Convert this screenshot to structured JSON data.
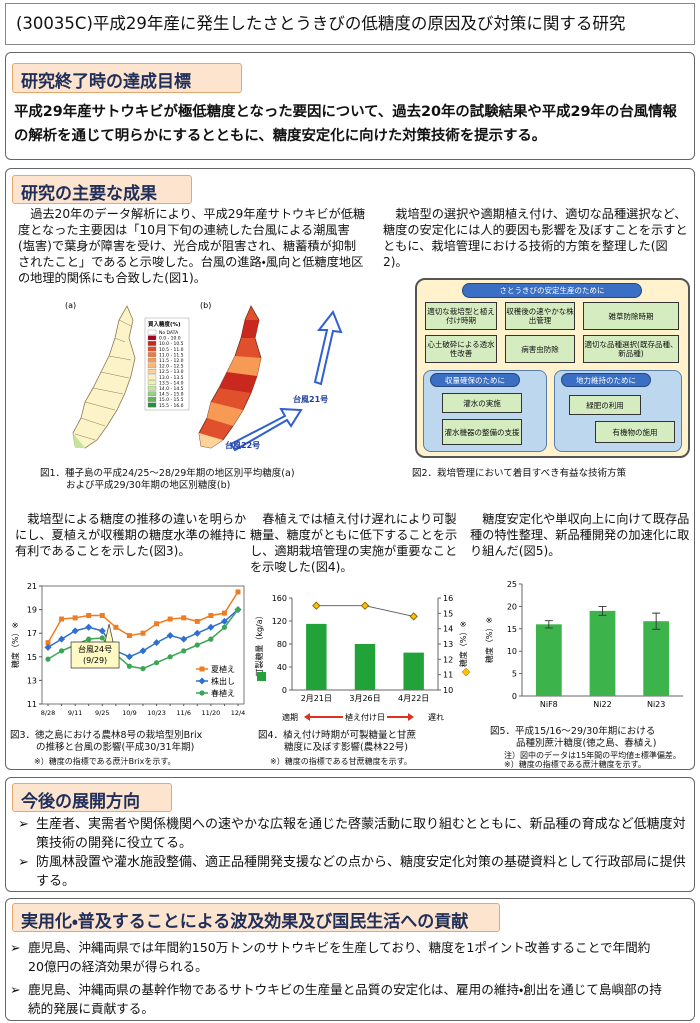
{
  "title": "(30035C)平成29年産に発生したさとうきびの低糖度の原因及び対策に関する研究",
  "goal": {
    "heading": "研究終了時の達成目標",
    "text": "平成29年産サトウキビが極低糖度となった要因について、過去20年の試験結果や平成29年の台風情報の解析を通じて明らかにするとともに、糖度安定化に向けた対策技術を提示する。"
  },
  "results": {
    "heading": "研究の主要な成果",
    "para1": "過去20年のデータ解析により、平成29年産サトウキビが低糖度となった主要因は「10月下旬の連続した台風による潮風害(塩害)で葉身が障害を受け、光合成が阻害され、糖蓄積が抑制されたこと」であると示唆した。台風の進路・風向と低糖度地区の地理的関係にも合致した(図1)。",
    "para2": "栽培型の選択や適期植え付け、適切な品種選択など、糖度の安定化には人的要因も影響を及ぼすことを示すとともに、栽培管理における技術的方策を整理した(図2)。",
    "para3": "栽培型による糖度の推移の違いを明らかにし、夏植えが収穫期の糖度水準の維持に有利であることを示した(図3)。",
    "para4": "春植えでは植え付け遅れにより可製糖量、糖度がともに低下することを示し、適期栽培管理の実施が重要なことを示唆した(図4)。",
    "para5": "糖度安定化や単収向上に向けて既存品種の特性整理、新品種開発の加速化に取り組んだ(図5)。",
    "fig1": {
      "label_a": "(a)",
      "label_b": "(b)",
      "legend_title": "買入糖度(%)",
      "legend": [
        {
          "label": "No DATA",
          "color": "#ffffff"
        },
        {
          "label": "0.0 - 10.0",
          "color": "#a50026"
        },
        {
          "label": "10.0 - 10.5",
          "color": "#c8281e"
        },
        {
          "label": "10.5 - 11.0",
          "color": "#e0502c"
        },
        {
          "label": "11.0 - 11.5",
          "color": "#ef7a3e"
        },
        {
          "label": "11.5 - 12.0",
          "color": "#f79a55"
        },
        {
          "label": "12.0 - 12.5",
          "color": "#fbb872"
        },
        {
          "label": "12.5 - 13.0",
          "color": "#fdd39a"
        },
        {
          "label": "13.0 - 13.5",
          "color": "#fef0c0"
        },
        {
          "label": "13.5 - 14.0",
          "color": "#e8f3b4"
        },
        {
          "label": "14.0 - 14.5",
          "color": "#c5e39a"
        },
        {
          "label": "14.5 - 15.0",
          "color": "#98cf7d"
        },
        {
          "label": "15.0 - 15.5",
          "color": "#62b25e"
        },
        {
          "label": "15.5 - 16.0",
          "color": "#2e8b3e"
        }
      ],
      "typhoon21": "台風21号",
      "typhoon22": "台風22号",
      "caption": [
        "図1．種子島の平成24/25～28/29年期の地区別平均糖度(a)",
        "および平成29/30年期の地区別糖度(b)"
      ]
    },
    "fig2": {
      "top": "さとうきびの安定生産のために",
      "top_boxes": [
        "適切な栽培型と植え付け時期",
        "収穫後の速やかな株出管理",
        "雑草防除時期",
        "心土破砕による透水性改善",
        "病害虫防除",
        "適切な品種選択(既存品種、新品種)"
      ],
      "left": "収量確保のために",
      "left_boxes": [
        "灌水の実施",
        "灌水機器の整備の支援"
      ],
      "right": "地力維持のために",
      "right_boxes": [
        "緑肥の利用",
        "有機物の施用"
      ],
      "caption": "図2．栽培管理において着目すべき有益な技術方策"
    },
    "fig3": {
      "chart_data": {
        "type": "line",
        "categories": [
          "8/28",
          null,
          "9/11",
          null,
          "9/25",
          null,
          "10/9",
          null,
          "10/23",
          null,
          "11/6",
          null,
          "11/20",
          null,
          "12/4"
        ],
        "series": [
          {
            "name": "夏植え",
            "color": "#f07c22",
            "marker": "square",
            "values": [
              16.2,
              18.2,
              18.3,
              18.5,
              18.5,
              17.5,
              16.8,
              17.0,
              17.8,
              18.2,
              18.3,
              18.0,
              18.5,
              18.7,
              20.5
            ]
          },
          {
            "name": "株出し",
            "color": "#2f6fd0",
            "marker": "diamond",
            "values": [
              15.8,
              16.5,
              17.2,
              17.5,
              17.2,
              15.5,
              15.0,
              15.5,
              16.2,
              16.8,
              16.5,
              17.0,
              17.5,
              18.0,
              19.0
            ]
          },
          {
            "name": "春植え",
            "color": "#3aa655",
            "marker": "circle",
            "values": [
              14.8,
              15.5,
              16.0,
              16.5,
              16.6,
              15.2,
              14.2,
              14.0,
              14.5,
              15.0,
              15.5,
              16.0,
              16.5,
              17.5,
              19.0
            ]
          }
        ],
        "ylim": [
          11,
          21
        ],
        "yticks": [
          11,
          13,
          15,
          17,
          19,
          21
        ],
        "y_label": "糖度（%）※",
        "annotation": "台風24号",
        "annotation_date": "(9/29)",
        "legend": "bottom-right"
      },
      "caption": [
        "図3．徳之島における農林8号の栽培型別Brix",
        "の推移と台風の影響(平成30/31年期)"
      ],
      "note": "※）糖度の指標である蔗汁Brixを示す。"
    },
    "fig4": {
      "chart_data": {
        "type": "bar",
        "categories": [
          "2月21日",
          "3月26日",
          "4月22日"
        ],
        "series": [
          {
            "name": "可製糖量",
            "color": "#22a33a",
            "values": [
              115,
              80,
              65
            ]
          },
          {
            "name": "糖度",
            "color": "#ffc000",
            "values": [
              15.5,
              15.5,
              14.8
            ],
            "axis": "y2"
          }
        ],
        "ylim": [
          0,
          160
        ],
        "yticks": [
          0,
          40,
          80,
          120,
          160
        ],
        "y2lim": [
          10,
          16
        ],
        "y2ticks": [
          10,
          11,
          12,
          13,
          14,
          15,
          16
        ],
        "y_label": "可製糖量（kg/a）",
        "y2_label": "糖度（%）※",
        "x_label": "植え付け日",
        "x_left": "適期",
        "x_right": "遅れ"
      },
      "caption": [
        "図4．植え付け時期が可製糖量と甘蔗",
        "糖度に及ぼす影響(農林22号)"
      ],
      "note": "※）糖度の指標である甘蔗糖度を示す。"
    },
    "fig5": {
      "chart_data": {
        "type": "bar",
        "categories": [
          "NiF8",
          "Ni22",
          "Ni23"
        ],
        "values": [
          16,
          19,
          16.7
        ],
        "errors": [
          0.8,
          1.0,
          1.8
        ],
        "color": "#3cb44b",
        "ylim": [
          0,
          25
        ],
        "yticks": [
          0,
          5,
          10,
          15,
          20,
          25
        ],
        "y_label": "糖度（%）※"
      },
      "caption": [
        "図5．平成15/16～29/30年期における",
        "品種別蔗汁糖度(徳之島、春植え)"
      ],
      "notes": [
        "注）図中のデータは15年間の平均値±標準偏差。",
        "※）糖度の指標である蔗汁糖度を示す。"
      ]
    }
  },
  "future": {
    "heading": "今後の展開方向",
    "items": [
      "生産者、実需者や関係機関への速やかな広報を通じた啓蒙活動に取り組むとともに、新品種の育成など低糖度対策技術の開発に役立てる。",
      "防風林設置や灌水施設整備、適正品種開発支援などの点から、糖度安定化対策の基礎資料として行政部局に提供する。"
    ]
  },
  "impact": {
    "heading": "実用化・普及することによる波及効果及び国民生活への貢献",
    "items": [
      "鹿児島、沖縄両県では年間約150万トンのサトウキビを生産しており、糖度を1ポイント改善することで年間約20億円の経済効果が得られる。",
      "鹿児島、沖縄両県の基幹作物であるサトウキビの生産量と品質の安定化は、雇用の維持・創出を通じて島嶼部の持続的発展に貢献する。"
    ]
  }
}
